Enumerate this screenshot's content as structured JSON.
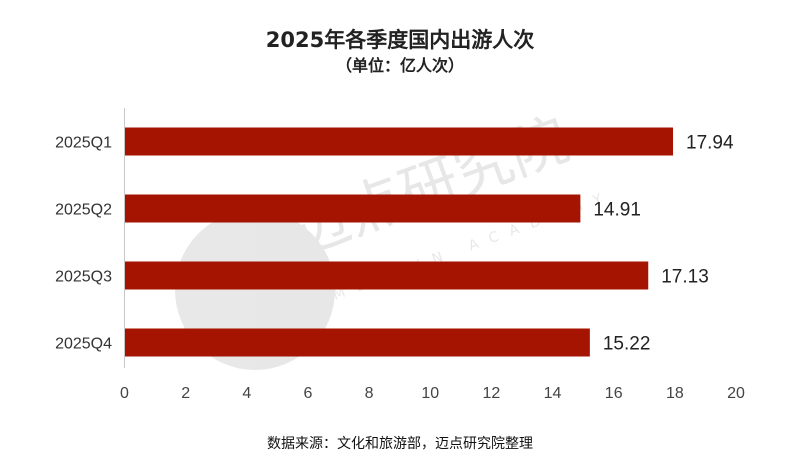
{
  "chart_data": {
    "type": "bar",
    "orientation": "horizontal",
    "title": "2025年各季度国内出游人次",
    "subtitle": "（单位：亿人次）",
    "categories": [
      "2025Q1",
      "2025Q2",
      "2025Q3",
      "2025Q4"
    ],
    "values": [
      17.94,
      14.91,
      17.13,
      15.22
    ],
    "data_labels": [
      "17.94",
      "14.91",
      "17.13",
      "15.22"
    ],
    "xlim": [
      0,
      20
    ],
    "xticks": [
      "0",
      "2",
      "4",
      "6",
      "8",
      "10",
      "12",
      "14",
      "16",
      "18",
      "20"
    ],
    "grid": false,
    "bar_color": "#A51400"
  },
  "source": "数据来源：文化和旅游部，迈点研究院整理",
  "watermark": {
    "text": "迈点研究院",
    "subtext": "MEADIN ACADEMY"
  }
}
